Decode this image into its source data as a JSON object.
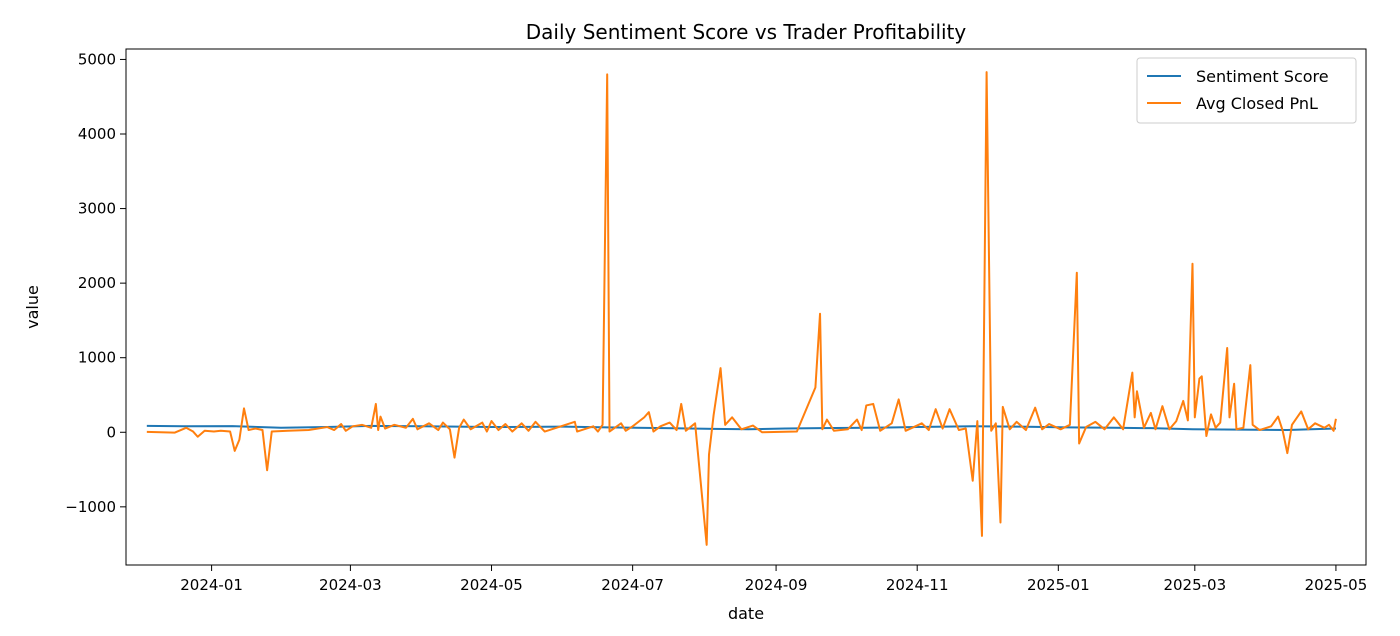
{
  "chart_data": {
    "type": "line",
    "title": "Daily Sentiment Score vs Trader Profitability",
    "xlabel": "date",
    "ylabel": "value",
    "xlim": [
      "2023-11-25",
      "2025-05-14"
    ],
    "ylim": [
      -1780,
      5140
    ],
    "x_ticks": [
      "2024-01",
      "2024-03",
      "2024-05",
      "2024-07",
      "2024-09",
      "2024-11",
      "2025-01",
      "2025-03",
      "2025-05"
    ],
    "y_ticks": [
      -1000,
      0,
      1000,
      2000,
      3000,
      4000,
      5000
    ],
    "y_tick_labels": [
      "−1000",
      "0",
      "1000",
      "2000",
      "3000",
      "4000",
      "5000"
    ],
    "grid": false,
    "legend_position": "top-right",
    "colors": {
      "Sentiment Score": "#1f77b4",
      "Avg Closed PnL": "#ff7f0e"
    },
    "series": [
      {
        "name": "Sentiment Score",
        "points": [
          [
            "2023-12-04",
            85
          ],
          [
            "2023-12-20",
            80
          ],
          [
            "2024-01-10",
            82
          ],
          [
            "2024-01-31",
            60
          ],
          [
            "2024-02-20",
            70
          ],
          [
            "2024-03-10",
            85
          ],
          [
            "2024-04-01",
            80
          ],
          [
            "2024-05-01",
            70
          ],
          [
            "2024-06-01",
            75
          ],
          [
            "2024-06-20",
            65
          ],
          [
            "2024-07-15",
            55
          ],
          [
            "2024-08-05",
            45
          ],
          [
            "2024-08-20",
            40
          ],
          [
            "2024-09-05",
            50
          ],
          [
            "2024-09-20",
            55
          ],
          [
            "2024-10-10",
            60
          ],
          [
            "2024-11-01",
            70
          ],
          [
            "2024-11-25",
            80
          ],
          [
            "2024-12-15",
            75
          ],
          [
            "2025-01-05",
            65
          ],
          [
            "2025-01-25",
            60
          ],
          [
            "2025-02-10",
            55
          ],
          [
            "2025-02-28",
            40
          ],
          [
            "2025-03-20",
            35
          ],
          [
            "2025-04-10",
            30
          ],
          [
            "2025-05-01",
            50
          ]
        ]
      },
      {
        "name": "Avg Closed PnL",
        "points": [
          [
            "2023-12-04",
            5
          ],
          [
            "2023-12-10",
            0
          ],
          [
            "2023-12-16",
            -5
          ],
          [
            "2023-12-21",
            60
          ],
          [
            "2023-12-24",
            10
          ],
          [
            "2023-12-26",
            -60
          ],
          [
            "2023-12-29",
            20
          ],
          [
            "2024-01-02",
            10
          ],
          [
            "2024-01-05",
            20
          ],
          [
            "2024-01-09",
            10
          ],
          [
            "2024-01-11",
            -250
          ],
          [
            "2024-01-13",
            -100
          ],
          [
            "2024-01-15",
            320
          ],
          [
            "2024-01-17",
            30
          ],
          [
            "2024-01-20",
            50
          ],
          [
            "2024-01-23",
            30
          ],
          [
            "2024-01-25",
            -510
          ],
          [
            "2024-01-27",
            10
          ],
          [
            "2024-02-03",
            20
          ],
          [
            "2024-02-12",
            30
          ],
          [
            "2024-02-20",
            70
          ],
          [
            "2024-02-23",
            30
          ],
          [
            "2024-02-26",
            110
          ],
          [
            "2024-02-28",
            20
          ],
          [
            "2024-03-02",
            80
          ],
          [
            "2024-03-06",
            100
          ],
          [
            "2024-03-10",
            60
          ],
          [
            "2024-03-12",
            380
          ],
          [
            "2024-03-13",
            30
          ],
          [
            "2024-03-14",
            210
          ],
          [
            "2024-03-16",
            50
          ],
          [
            "2024-03-20",
            100
          ],
          [
            "2024-03-25",
            60
          ],
          [
            "2024-03-28",
            180
          ],
          [
            "2024-03-30",
            40
          ],
          [
            "2024-04-04",
            120
          ],
          [
            "2024-04-08",
            30
          ],
          [
            "2024-04-10",
            130
          ],
          [
            "2024-04-13",
            40
          ],
          [
            "2024-04-15",
            -340
          ],
          [
            "2024-04-17",
            60
          ],
          [
            "2024-04-19",
            170
          ],
          [
            "2024-04-22",
            40
          ],
          [
            "2024-04-27",
            130
          ],
          [
            "2024-04-29",
            10
          ],
          [
            "2024-05-01",
            150
          ],
          [
            "2024-05-04",
            30
          ],
          [
            "2024-05-07",
            110
          ],
          [
            "2024-05-10",
            10
          ],
          [
            "2024-05-14",
            120
          ],
          [
            "2024-05-17",
            20
          ],
          [
            "2024-05-20",
            140
          ],
          [
            "2024-05-24",
            10
          ],
          [
            "2024-06-06",
            140
          ],
          [
            "2024-06-07",
            10
          ],
          [
            "2024-06-14",
            80
          ],
          [
            "2024-06-16",
            10
          ],
          [
            "2024-06-18",
            100
          ],
          [
            "2024-06-20",
            4800
          ],
          [
            "2024-06-21",
            10
          ],
          [
            "2024-06-26",
            120
          ],
          [
            "2024-06-28",
            20
          ],
          [
            "2024-07-01",
            80
          ],
          [
            "2024-07-06",
            200
          ],
          [
            "2024-07-08",
            270
          ],
          [
            "2024-07-10",
            10
          ],
          [
            "2024-07-13",
            80
          ],
          [
            "2024-07-17",
            130
          ],
          [
            "2024-07-20",
            30
          ],
          [
            "2024-07-22",
            380
          ],
          [
            "2024-07-24",
            20
          ],
          [
            "2024-07-28",
            120
          ],
          [
            "2024-08-02",
            -1510
          ],
          [
            "2024-08-03",
            -300
          ],
          [
            "2024-08-05",
            230
          ],
          [
            "2024-08-08",
            860
          ],
          [
            "2024-08-10",
            100
          ],
          [
            "2024-08-13",
            200
          ],
          [
            "2024-08-17",
            40
          ],
          [
            "2024-08-22",
            90
          ],
          [
            "2024-08-26",
            0
          ],
          [
            "2024-09-10",
            10
          ],
          [
            "2024-09-18",
            600
          ],
          [
            "2024-09-20",
            1590
          ],
          [
            "2024-09-21",
            40
          ],
          [
            "2024-09-23",
            170
          ],
          [
            "2024-09-26",
            20
          ],
          [
            "2024-10-02",
            40
          ],
          [
            "2024-10-06",
            170
          ],
          [
            "2024-10-08",
            30
          ],
          [
            "2024-10-10",
            360
          ],
          [
            "2024-10-13",
            380
          ],
          [
            "2024-10-16",
            20
          ],
          [
            "2024-10-21",
            120
          ],
          [
            "2024-10-24",
            440
          ],
          [
            "2024-10-27",
            20
          ],
          [
            "2024-11-03",
            120
          ],
          [
            "2024-11-06",
            30
          ],
          [
            "2024-11-09",
            310
          ],
          [
            "2024-11-12",
            50
          ],
          [
            "2024-11-15",
            310
          ],
          [
            "2024-11-19",
            30
          ],
          [
            "2024-11-22",
            50
          ],
          [
            "2024-11-25",
            -650
          ],
          [
            "2024-11-27",
            150
          ],
          [
            "2024-11-29",
            -1390
          ],
          [
            "2024-12-01",
            4830
          ],
          [
            "2024-12-03",
            20
          ],
          [
            "2024-12-05",
            120
          ],
          [
            "2024-12-07",
            -1210
          ],
          [
            "2024-12-08",
            340
          ],
          [
            "2024-12-11",
            40
          ],
          [
            "2024-12-14",
            140
          ],
          [
            "2024-12-18",
            30
          ],
          [
            "2024-12-22",
            330
          ],
          [
            "2024-12-25",
            40
          ],
          [
            "2024-12-28",
            110
          ],
          [
            "2025-01-02",
            40
          ],
          [
            "2025-01-06",
            100
          ],
          [
            "2025-01-09",
            2140
          ],
          [
            "2025-01-10",
            -150
          ],
          [
            "2025-01-13",
            70
          ],
          [
            "2025-01-17",
            140
          ],
          [
            "2025-01-21",
            40
          ],
          [
            "2025-01-25",
            200
          ],
          [
            "2025-01-29",
            40
          ],
          [
            "2025-02-02",
            800
          ],
          [
            "2025-02-03",
            200
          ],
          [
            "2025-02-04",
            550
          ],
          [
            "2025-02-07",
            60
          ],
          [
            "2025-02-10",
            260
          ],
          [
            "2025-02-12",
            40
          ],
          [
            "2025-02-15",
            350
          ],
          [
            "2025-02-18",
            40
          ],
          [
            "2025-02-21",
            150
          ],
          [
            "2025-02-24",
            420
          ],
          [
            "2025-02-26",
            160
          ],
          [
            "2025-02-28",
            2260
          ],
          [
            "2025-03-01",
            200
          ],
          [
            "2025-03-03",
            720
          ],
          [
            "2025-03-04",
            750
          ],
          [
            "2025-03-06",
            -50
          ],
          [
            "2025-03-08",
            240
          ],
          [
            "2025-03-10",
            60
          ],
          [
            "2025-03-12",
            130
          ],
          [
            "2025-03-15",
            1130
          ],
          [
            "2025-03-16",
            200
          ],
          [
            "2025-03-18",
            650
          ],
          [
            "2025-03-19",
            40
          ],
          [
            "2025-03-22",
            60
          ],
          [
            "2025-03-25",
            900
          ],
          [
            "2025-03-26",
            100
          ],
          [
            "2025-03-29",
            30
          ],
          [
            "2025-04-03",
            80
          ],
          [
            "2025-04-06",
            210
          ],
          [
            "2025-04-08",
            20
          ],
          [
            "2025-04-10",
            -280
          ],
          [
            "2025-04-12",
            100
          ],
          [
            "2025-04-16",
            280
          ],
          [
            "2025-04-19",
            40
          ],
          [
            "2025-04-22",
            120
          ],
          [
            "2025-04-26",
            60
          ],
          [
            "2025-04-28",
            100
          ],
          [
            "2025-04-30",
            20
          ],
          [
            "2025-05-01",
            180
          ]
        ]
      }
    ]
  }
}
